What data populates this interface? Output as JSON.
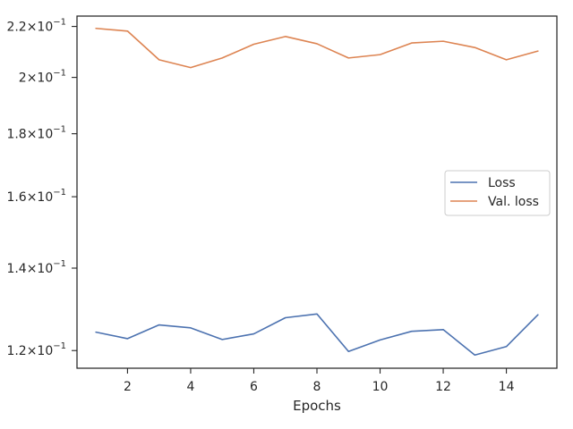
{
  "chart_data": {
    "type": "line",
    "title": "",
    "xlabel": "Epochs",
    "ylabel": "",
    "y_scale": "log",
    "grid": false,
    "legend_position": "center-right",
    "x": [
      1,
      2,
      3,
      4,
      5,
      6,
      7,
      8,
      9,
      10,
      11,
      12,
      13,
      14,
      15
    ],
    "xlim": [
      0.4,
      15.6
    ],
    "ylim": [
      0.1161,
      0.2243
    ],
    "x_ticks": [
      {
        "value": 2,
        "label": "2"
      },
      {
        "value": 4,
        "label": "4"
      },
      {
        "value": 6,
        "label": "6"
      },
      {
        "value": 8,
        "label": "8"
      },
      {
        "value": 10,
        "label": "10"
      },
      {
        "value": 12,
        "label": "12"
      },
      {
        "value": 14,
        "label": "14"
      }
    ],
    "y_ticks": [
      {
        "value": 0.12,
        "mantissa": "1.2",
        "base": "10",
        "exponent": "−1"
      },
      {
        "value": 0.14,
        "mantissa": "1.4",
        "base": "10",
        "exponent": "−1"
      },
      {
        "value": 0.16,
        "mantissa": "1.6",
        "base": "10",
        "exponent": "−1"
      },
      {
        "value": 0.18,
        "mantissa": "1.8",
        "base": "10",
        "exponent": "−1"
      },
      {
        "value": 0.2,
        "mantissa": "2",
        "base": "10",
        "exponent": "−1"
      },
      {
        "value": 0.22,
        "mantissa": "2.2",
        "base": "10",
        "exponent": "−1"
      }
    ],
    "series": [
      {
        "name": "Loss",
        "color": "#4c72b0",
        "values": [
          0.1242,
          0.1227,
          0.1259,
          0.1252,
          0.1225,
          0.1238,
          0.1276,
          0.1285,
          0.1198,
          0.1224,
          0.1244,
          0.1248,
          0.119,
          0.1209,
          0.1283
        ]
      },
      {
        "name": "Val. loss",
        "color": "#dd8452",
        "values": [
          0.2192,
          0.2181,
          0.2067,
          0.2037,
          0.2074,
          0.2128,
          0.2159,
          0.213,
          0.2074,
          0.2087,
          0.2133,
          0.214,
          0.2115,
          0.2067,
          0.2101
        ]
      }
    ]
  }
}
